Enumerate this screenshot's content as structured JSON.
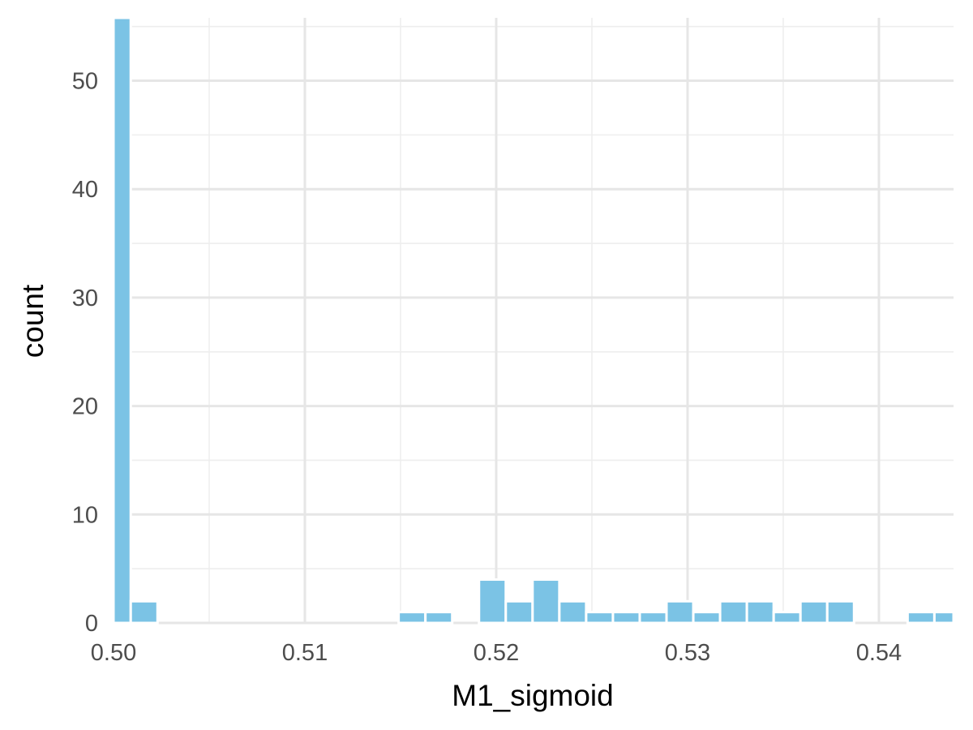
{
  "chart_data": {
    "type": "bar",
    "subtype": "histogram",
    "title": "",
    "xlabel": "M1_sigmoid",
    "ylabel": "count",
    "xlim": [
      0.5,
      0.5439
    ],
    "ylim": [
      0,
      55.8
    ],
    "grid": true,
    "legend": "none",
    "bin_width": 0.0014,
    "x_ticks": [
      0.5,
      0.51,
      0.52,
      0.53,
      0.54
    ],
    "x_tick_labels": [
      "0.50",
      "0.51",
      "0.52",
      "0.53",
      "0.54"
    ],
    "y_ticks": [
      0,
      10,
      20,
      30,
      40,
      50
    ],
    "y_tick_labels": [
      "0",
      "10",
      "20",
      "30",
      "40",
      "50"
    ],
    "x": [
      0.5002,
      0.5016,
      0.503,
      0.5044,
      0.5058,
      0.5072,
      0.5086,
      0.51,
      0.5114,
      0.5128,
      0.5142,
      0.5156,
      0.517,
      0.5184,
      0.5198,
      0.5212,
      0.5226,
      0.524,
      0.5254,
      0.5268,
      0.5282,
      0.5296,
      0.531,
      0.5324,
      0.5338,
      0.5352,
      0.5366,
      0.538,
      0.5394,
      0.5408,
      0.5422,
      0.5436
    ],
    "values": [
      56,
      2,
      0,
      0,
      0,
      0,
      0,
      0,
      0,
      0,
      0,
      1,
      1,
      0,
      4,
      2,
      4,
      2,
      1,
      1,
      1,
      2,
      1,
      2,
      2,
      1,
      2,
      2,
      0,
      0,
      1,
      1
    ],
    "colors": {
      "bar": "#7bc3e5",
      "bar_outline": "#ffffff",
      "grid": "#e6e6e6",
      "tick_text": "#4d4d4d",
      "title_text": "#000000",
      "background": "#ffffff"
    }
  }
}
